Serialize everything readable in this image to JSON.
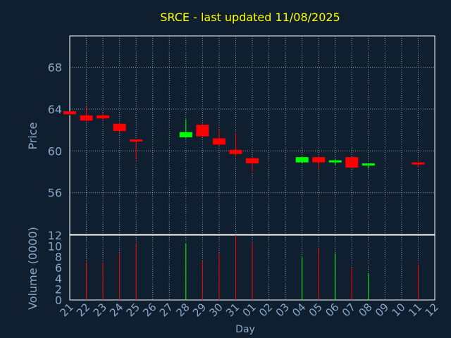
{
  "colors": {
    "background": "#0f1f2f",
    "title": "#ffff00",
    "axis_text": "#8aa8c8",
    "grid": "#c8c8c8",
    "up": "#00ff00",
    "down": "#ff0000",
    "frame": "#ffffff"
  },
  "chart_data": [
    {
      "type": "candlestick",
      "title": "SRCE - last updated 11/08/2025",
      "ylabel": "Price",
      "ylim": [
        52,
        71
      ],
      "yticks": [
        56,
        60,
        64,
        68
      ],
      "grid": true,
      "categories": [
        "21",
        "22",
        "23",
        "24",
        "25",
        "26",
        "27",
        "28",
        "29",
        "30",
        "31",
        "01",
        "02",
        "03",
        "04",
        "05",
        "06",
        "07",
        "08",
        "09",
        "10",
        "11",
        "12"
      ],
      "candles": [
        {
          "x": 0,
          "open": 63.8,
          "close": 63.5,
          "high": 63.8,
          "low": 63.4,
          "dir": "down"
        },
        {
          "x": 1,
          "open": 63.4,
          "close": 62.9,
          "high": 64.3,
          "low": 62.8,
          "dir": "down"
        },
        {
          "x": 2,
          "open": 63.4,
          "close": 63.1,
          "high": 63.6,
          "low": 62.9,
          "dir": "down"
        },
        {
          "x": 3,
          "open": 62.6,
          "close": 61.9,
          "high": 62.7,
          "low": 61.7,
          "dir": "down"
        },
        {
          "x": 4,
          "open": 61.1,
          "close": 60.9,
          "high": 61.1,
          "low": 59.2,
          "dir": "down"
        },
        {
          "x": 7,
          "open": 61.3,
          "close": 61.8,
          "high": 63.0,
          "low": 61.2,
          "dir": "up"
        },
        {
          "x": 8,
          "open": 62.5,
          "close": 61.4,
          "high": 62.6,
          "low": 61.3,
          "dir": "down"
        },
        {
          "x": 9,
          "open": 61.2,
          "close": 60.6,
          "high": 62.2,
          "low": 60.5,
          "dir": "down"
        },
        {
          "x": 10,
          "open": 60.1,
          "close": 59.7,
          "high": 61.7,
          "low": 59.4,
          "dir": "down"
        },
        {
          "x": 11,
          "open": 59.3,
          "close": 58.8,
          "high": 59.4,
          "low": 58.0,
          "dir": "down"
        },
        {
          "x": 14,
          "open": 58.9,
          "close": 59.4,
          "high": 59.4,
          "low": 58.8,
          "dir": "up"
        },
        {
          "x": 15,
          "open": 59.4,
          "close": 58.9,
          "high": 59.5,
          "low": 58.2,
          "dir": "down"
        },
        {
          "x": 16,
          "open": 58.9,
          "close": 59.1,
          "high": 59.2,
          "low": 58.6,
          "dir": "up"
        },
        {
          "x": 17,
          "open": 59.4,
          "close": 58.4,
          "high": 59.4,
          "low": 58.3,
          "dir": "down"
        },
        {
          "x": 18,
          "open": 58.6,
          "close": 58.8,
          "high": 58.8,
          "low": 58.3,
          "dir": "up"
        },
        {
          "x": 21,
          "open": 58.9,
          "close": 58.7,
          "high": 58.9,
          "low": 58.4,
          "dir": "down"
        }
      ]
    },
    {
      "type": "bar",
      "ylabel": "Volume (0000)",
      "xlabel": "Day",
      "ylim": [
        0,
        12
      ],
      "yticks": [
        0,
        2,
        4,
        6,
        8,
        10,
        12
      ],
      "categories": [
        "21",
        "22",
        "23",
        "24",
        "25",
        "26",
        "27",
        "28",
        "29",
        "30",
        "31",
        "01",
        "02",
        "03",
        "04",
        "05",
        "06",
        "07",
        "08",
        "09",
        "10",
        "11",
        "12"
      ],
      "bars": [
        {
          "x": 1,
          "value": 7.0,
          "dir": "down"
        },
        {
          "x": 2,
          "value": 7.0,
          "dir": "down"
        },
        {
          "x": 3,
          "value": 8.8,
          "dir": "down"
        },
        {
          "x": 4,
          "value": 10.5,
          "dir": "down"
        },
        {
          "x": 7,
          "value": 10.5,
          "dir": "up"
        },
        {
          "x": 8,
          "value": 7.2,
          "dir": "down"
        },
        {
          "x": 9,
          "value": 8.8,
          "dir": "down"
        },
        {
          "x": 10,
          "value": 12.0,
          "dir": "down"
        },
        {
          "x": 11,
          "value": 10.6,
          "dir": "down"
        },
        {
          "x": 14,
          "value": 7.9,
          "dir": "up"
        },
        {
          "x": 15,
          "value": 9.6,
          "dir": "down"
        },
        {
          "x": 16,
          "value": 8.6,
          "dir": "up"
        },
        {
          "x": 17,
          "value": 6.0,
          "dir": "down"
        },
        {
          "x": 18,
          "value": 4.9,
          "dir": "up"
        },
        {
          "x": 21,
          "value": 6.6,
          "dir": "down"
        }
      ]
    }
  ]
}
